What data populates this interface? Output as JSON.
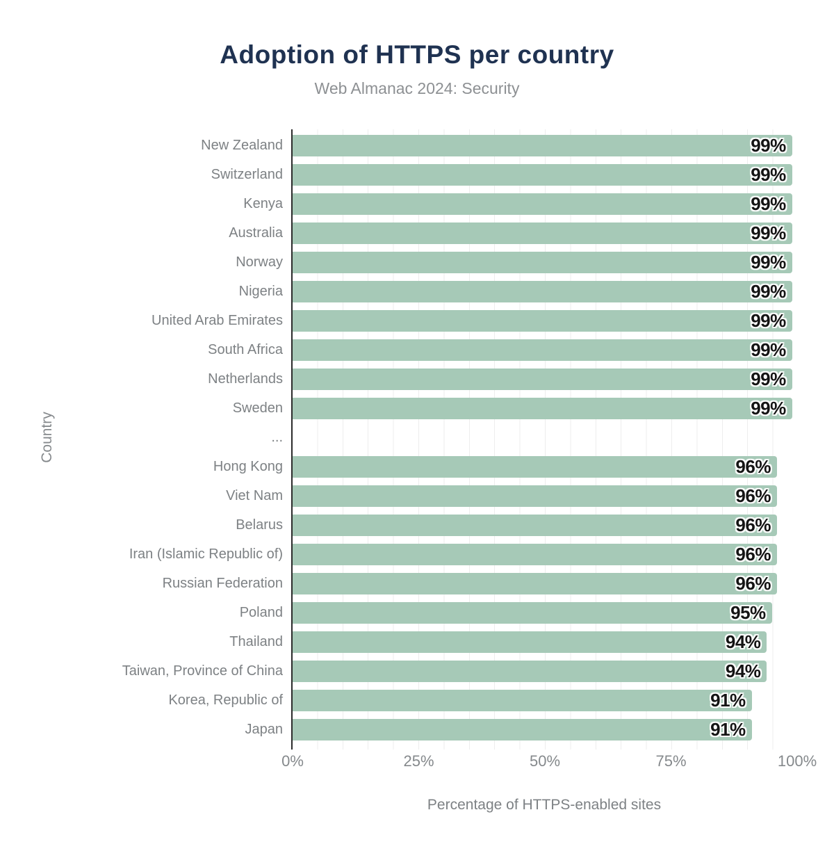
{
  "header": {
    "title": "Adoption of HTTPS per country",
    "subtitle": "Web Almanac 2024: Security"
  },
  "chart_data": {
    "type": "bar",
    "orientation": "horizontal",
    "title": "Adoption of HTTPS per country",
    "subtitle": "Web Almanac 2024: Security",
    "xlabel": "Percentage of HTTPS-enabled sites",
    "ylabel": "Country",
    "xlim": [
      0,
      100
    ],
    "x_ticks": [
      {
        "label": "0%",
        "value": 0
      },
      {
        "label": "25%",
        "value": 25
      },
      {
        "label": "50%",
        "value": 50
      },
      {
        "label": "75%",
        "value": 75
      },
      {
        "label": "100%",
        "value": 100
      }
    ],
    "grid": {
      "vertical_lines_every_percent": 5,
      "color": "#ededed"
    },
    "bar_color": "#a6c9b7",
    "axis_line_color": "#2b2b2b",
    "value_label_suffix": "%",
    "rows": [
      {
        "category": "New Zealand",
        "value": 99,
        "label": "99%"
      },
      {
        "category": "Switzerland",
        "value": 99,
        "label": "99%"
      },
      {
        "category": "Kenya",
        "value": 99,
        "label": "99%"
      },
      {
        "category": "Australia",
        "value": 99,
        "label": "99%"
      },
      {
        "category": "Norway",
        "value": 99,
        "label": "99%"
      },
      {
        "category": "Nigeria",
        "value": 99,
        "label": "99%"
      },
      {
        "category": "United Arab Emirates",
        "value": 99,
        "label": "99%"
      },
      {
        "category": "South Africa",
        "value": 99,
        "label": "99%"
      },
      {
        "category": "Netherlands",
        "value": 99,
        "label": "99%"
      },
      {
        "category": "Sweden",
        "value": 99,
        "label": "99%"
      },
      {
        "category": "...",
        "value": null,
        "label": ""
      },
      {
        "category": "Hong Kong",
        "value": 96,
        "label": "96%"
      },
      {
        "category": "Viet Nam",
        "value": 96,
        "label": "96%"
      },
      {
        "category": "Belarus",
        "value": 96,
        "label": "96%"
      },
      {
        "category": "Iran (Islamic Republic of)",
        "value": 96,
        "label": "96%"
      },
      {
        "category": "Russian Federation",
        "value": 96,
        "label": "96%"
      },
      {
        "category": "Poland",
        "value": 95,
        "label": "95%"
      },
      {
        "category": "Thailand",
        "value": 94,
        "label": "94%"
      },
      {
        "category": "Taiwan, Province of China",
        "value": 94,
        "label": "94%"
      },
      {
        "category": "Korea, Republic of",
        "value": 91,
        "label": "91%"
      },
      {
        "category": "Japan",
        "value": 91,
        "label": "91%"
      }
    ]
  }
}
